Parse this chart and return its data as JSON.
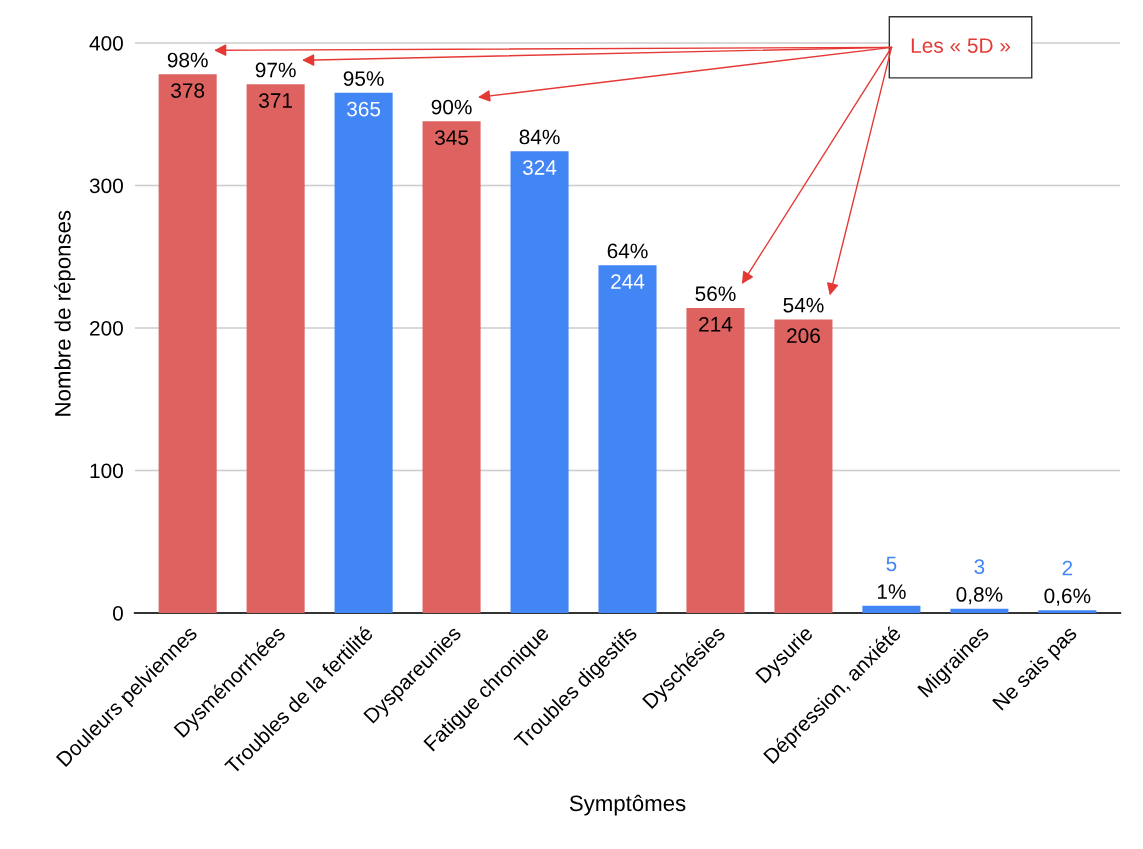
{
  "chart_data": {
    "type": "bar",
    "xlabel": "Symptômes",
    "ylabel": "Nombre de réponses",
    "categories": [
      "Douleurs pelviennes",
      "Dysménorrhées",
      "Troubles de la fertilité",
      "Dyspareunies",
      "Fatigue chronique",
      "Troubles digestifs",
      "Dyschésies",
      "Dysurie",
      "Dépression, anxiété",
      "Migraines",
      "Ne sais pas"
    ],
    "values": [
      378,
      371,
      365,
      345,
      324,
      244,
      214,
      206,
      5,
      3,
      2
    ],
    "colors": [
      "#dd6260",
      "#dd6260",
      "#4285f4",
      "#dd6260",
      "#4285f4",
      "#4285f4",
      "#dd6260",
      "#dd6260",
      "#4285f4",
      "#4285f4",
      "#4285f4"
    ],
    "data_labels": true,
    "ylim": [
      0,
      420
    ],
    "yticks": [
      0,
      100,
      200,
      300,
      400
    ],
    "grid": "y",
    "annotations": [
      {
        "text": "98%",
        "x": "Douleurs pelviennes",
        "y": 378
      },
      {
        "text": "97%",
        "x": "Dysménorrhées",
        "y": 371
      },
      {
        "text": "95%",
        "x": "Troubles de la fertilité",
        "y": 365
      },
      {
        "text": "90%",
        "x": "Dyspareunies",
        "y": 345
      },
      {
        "text": "84%",
        "x": "Fatigue chronique",
        "y": 324
      },
      {
        "text": "64%",
        "x": "Troubles digestifs",
        "y": 244
      },
      {
        "text": "56%",
        "x": "Dyschésies",
        "y": 214
      },
      {
        "text": "54%",
        "x": "Dysurie",
        "y": 206
      },
      {
        "text": "1%",
        "x": "Dépression, anxiété",
        "y": 5
      },
      {
        "text": "0,8%",
        "x": "Migraines",
        "y": 3
      },
      {
        "text": "0,6%",
        "x": "Ne sais pas",
        "y": 2
      },
      "Les « 5D »"
    ]
  }
}
